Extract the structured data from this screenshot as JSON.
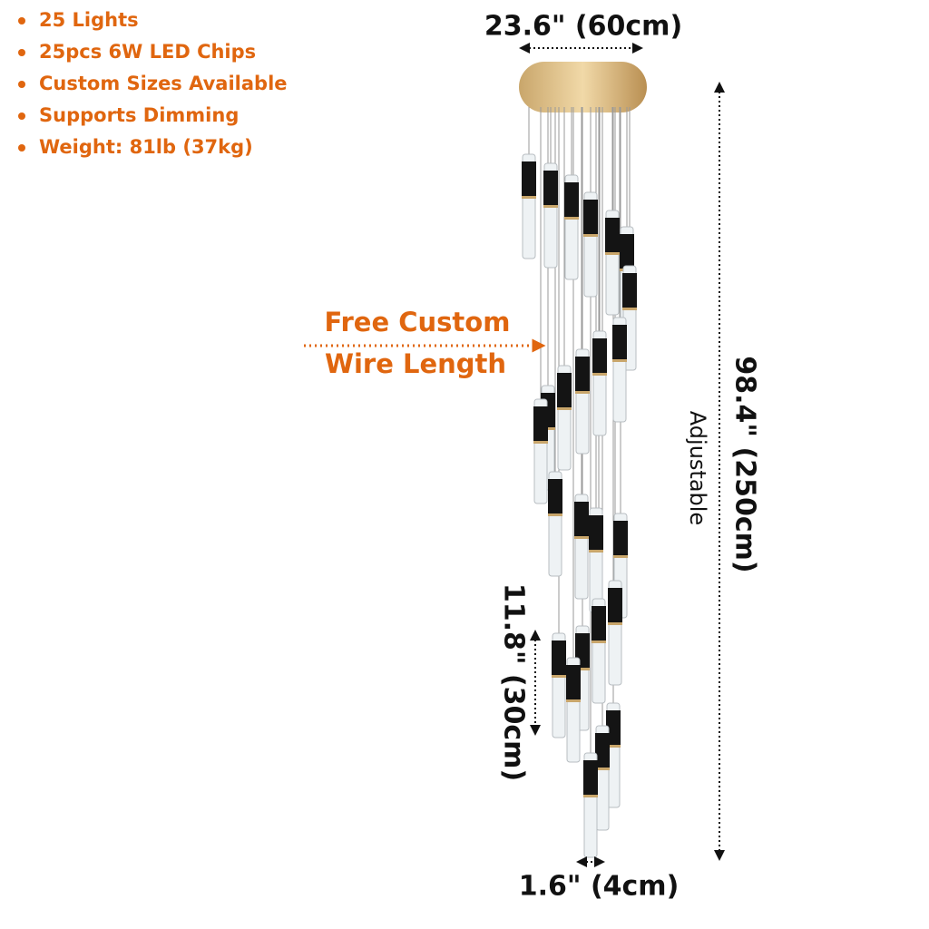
{
  "features": [
    "25 Lights",
    "25pcs 6W LED Chips",
    "Custom Sizes Available",
    "Supports Dimming",
    "Weight: 81lb (37kg)"
  ],
  "dimensions": {
    "width": "23.6\" (60cm)",
    "height": "98.4\" (250cm)",
    "adjustable": "Adjustable",
    "pendant_length": "11.8\" (30cm)",
    "pendant_diameter": "1.6\" (4cm)"
  },
  "callout": {
    "lines": [
      "Free Custom",
      "Wire Length"
    ]
  }
}
